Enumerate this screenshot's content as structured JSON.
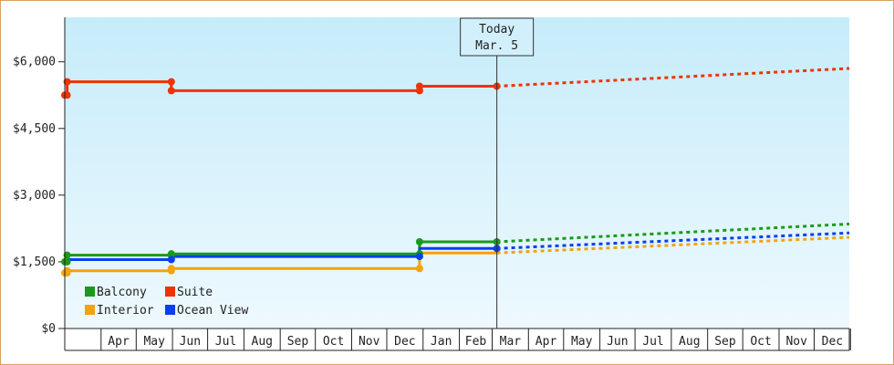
{
  "chart_data": {
    "type": "line",
    "title": "",
    "xlabel": "",
    "ylabel": "",
    "ylim": [
      0,
      7000
    ],
    "y_ticks": [
      0,
      1500,
      3000,
      4500,
      6000
    ],
    "y_tick_labels": [
      "$0",
      "$1,500",
      "$3,000",
      "$4,500",
      "$6,000"
    ],
    "x_tick_labels": [
      "Apr",
      "May",
      "Jun",
      "Jul",
      "Aug",
      "Sep",
      "Oct",
      "Nov",
      "Dec",
      "Jan",
      "Feb",
      "Mar",
      "Apr",
      "May",
      "Jun",
      "Jul",
      "Aug",
      "Sep",
      "Oct",
      "Nov",
      "Dec"
    ],
    "xlim": [
      "2018-03-01",
      "2019-12-31"
    ],
    "today_label": {
      "line1": "Today",
      "line2": "Mar. 5",
      "date": "2019-03-05"
    },
    "grid": false,
    "legend_position": "bottom-left",
    "series": [
      {
        "name": "Balcony",
        "color": "#1a9a1a",
        "history": [
          [
            "2018-03-01",
            1500
          ],
          [
            "2018-03-03",
            1500
          ],
          [
            "2018-03-03",
            1650
          ],
          [
            "2018-05-31",
            1650
          ],
          [
            "2018-05-31",
            1680
          ],
          [
            "2018-12-29",
            1680
          ],
          [
            "2018-12-29",
            1950
          ],
          [
            "2019-03-05",
            1950
          ]
        ],
        "markers": [
          [
            "2018-03-01",
            1500
          ],
          [
            "2018-03-03",
            1500
          ],
          [
            "2018-03-03",
            1650
          ],
          [
            "2018-05-31",
            1650
          ],
          [
            "2018-05-31",
            1680
          ],
          [
            "2018-12-29",
            1680
          ],
          [
            "2018-12-29",
            1950
          ],
          [
            "2019-03-05",
            1950
          ]
        ],
        "forecast": [
          [
            "2019-03-05",
            1950
          ],
          [
            "2019-12-31",
            2350
          ]
        ]
      },
      {
        "name": "Suite",
        "color": "#ee3300",
        "history": [
          [
            "2018-03-01",
            5250
          ],
          [
            "2018-03-03",
            5250
          ],
          [
            "2018-03-03",
            5550
          ],
          [
            "2018-05-31",
            5550
          ],
          [
            "2018-05-31",
            5350
          ],
          [
            "2018-12-29",
            5350
          ],
          [
            "2018-12-29",
            5450
          ],
          [
            "2019-03-05",
            5450
          ]
        ],
        "markers": [
          [
            "2018-03-01",
            5250
          ],
          [
            "2018-03-03",
            5250
          ],
          [
            "2018-03-03",
            5550
          ],
          [
            "2018-05-31",
            5550
          ],
          [
            "2018-05-31",
            5350
          ],
          [
            "2018-12-29",
            5350
          ],
          [
            "2018-12-29",
            5450
          ],
          [
            "2019-03-05",
            5450
          ]
        ],
        "forecast": [
          [
            "2019-03-05",
            5450
          ],
          [
            "2019-12-31",
            5850
          ]
        ]
      },
      {
        "name": "Interior",
        "color": "#f4a30a",
        "history": [
          [
            "2018-03-01",
            1250
          ],
          [
            "2018-03-03",
            1250
          ],
          [
            "2018-03-03",
            1300
          ],
          [
            "2018-05-31",
            1300
          ],
          [
            "2018-05-31",
            1350
          ],
          [
            "2018-12-29",
            1350
          ],
          [
            "2018-12-29",
            1700
          ],
          [
            "2019-03-05",
            1700
          ]
        ],
        "markers": [
          [
            "2018-03-01",
            1250
          ],
          [
            "2018-03-03",
            1250
          ],
          [
            "2018-03-03",
            1300
          ],
          [
            "2018-05-31",
            1300
          ],
          [
            "2018-05-31",
            1350
          ],
          [
            "2018-12-29",
            1350
          ]
        ],
        "forecast": [
          [
            "2019-03-05",
            1700
          ],
          [
            "2019-12-31",
            2050
          ]
        ]
      },
      {
        "name": "Ocean View",
        "color": "#0a3ef0",
        "history": [
          [
            "2018-03-01",
            1500
          ],
          [
            "2018-03-03",
            1500
          ],
          [
            "2018-03-03",
            1550
          ],
          [
            "2018-05-31",
            1550
          ],
          [
            "2018-05-31",
            1620
          ],
          [
            "2018-12-29",
            1620
          ],
          [
            "2018-12-29",
            1800
          ],
          [
            "2019-03-05",
            1800
          ]
        ],
        "markers": [
          [
            "2018-05-31",
            1550
          ],
          [
            "2018-12-29",
            1620
          ],
          [
            "2019-03-05",
            1800
          ]
        ],
        "forecast": [
          [
            "2019-03-05",
            1800
          ],
          [
            "2019-12-31",
            2150
          ]
        ]
      }
    ]
  }
}
